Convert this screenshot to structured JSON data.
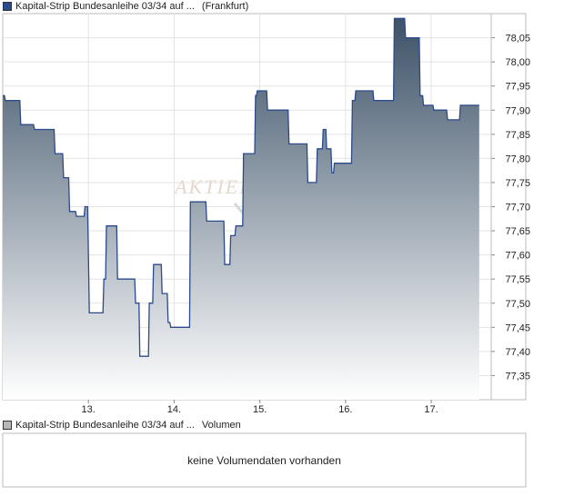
{
  "price_chart": {
    "legend_name": "Kapital-Strip Bundesanleihe 03/34 auf ...",
    "legend_exchange": "(Frankfurt)",
    "legend_color": "#2b4a8b",
    "watermark": "AKTIEN"
  },
  "volume_chart": {
    "legend_name": "Kapital-Strip Bundesanleihe 03/34 auf ...",
    "legend_label": "Volumen",
    "legend_color": "#b8b8b8",
    "no_data_text": "keine Volumendaten vorhanden"
  },
  "chart_data": [
    {
      "type": "area",
      "title": "",
      "xlabel": "",
      "ylabel": "",
      "ylim": [
        77.3,
        78.1
      ],
      "xlim": [
        12.0,
        17.7
      ],
      "y_ticks": [
        "77,35",
        "77,40",
        "77,45",
        "77,50",
        "77,55",
        "77,60",
        "77,65",
        "77,70",
        "77,75",
        "77,80",
        "77,85",
        "77,90",
        "77,95",
        "78,00",
        "78,05"
      ],
      "y_tick_values": [
        77.35,
        77.4,
        77.45,
        77.5,
        77.55,
        77.6,
        77.65,
        77.7,
        77.75,
        77.8,
        77.85,
        77.9,
        77.95,
        78.0,
        78.05
      ],
      "x_ticks": [
        "13.",
        "14.",
        "15.",
        "16.",
        "17."
      ],
      "x_tick_values": [
        13,
        14,
        15,
        16,
        17
      ],
      "y_axis_position": "right",
      "grid": true,
      "line_color": "#2b4a8b",
      "fill_top_color": "#3d5268",
      "fill_bottom_color": "#ffffff",
      "series": [
        {
          "x": [
            12.0,
            12.02,
            12.03,
            12.2,
            12.21,
            12.36,
            12.37,
            12.6,
            12.61,
            12.7,
            12.71,
            12.77,
            12.78,
            12.85,
            12.86,
            12.95,
            12.96,
            12.99,
            13.0,
            13.01,
            13.02,
            13.05,
            13.06,
            13.17,
            13.18,
            13.2,
            13.21,
            13.33,
            13.34,
            13.54,
            13.55,
            13.59,
            13.6,
            13.7,
            13.71,
            13.75,
            13.76,
            13.85,
            13.86,
            13.92,
            13.93,
            13.95,
            13.96,
            13.97,
            13.98,
            14.03,
            14.04,
            14.18,
            14.19,
            14.21,
            14.22,
            14.37,
            14.38,
            14.58,
            14.59,
            14.65,
            14.66,
            14.71,
            14.72,
            14.8,
            14.81,
            14.94,
            14.95,
            14.96,
            14.97,
            15.08,
            15.09,
            15.21,
            15.22,
            15.33,
            15.34,
            15.55,
            15.56,
            15.66,
            15.67,
            15.73,
            15.74,
            15.77,
            15.78,
            15.83,
            15.84,
            15.86,
            15.87,
            15.92,
            15.93,
            16.07,
            16.08,
            16.11,
            16.12,
            16.32,
            16.33,
            16.56,
            16.57,
            16.69,
            16.7,
            16.86,
            16.87,
            16.9,
            16.91,
            16.96,
            16.97,
            17.02,
            17.03,
            17.18,
            17.19,
            17.33,
            17.34,
            17.56
          ],
          "y": [
            77.93,
            77.93,
            77.92,
            77.92,
            77.87,
            77.87,
            77.86,
            77.86,
            77.81,
            77.81,
            77.76,
            77.76,
            77.69,
            77.69,
            77.68,
            77.68,
            77.7,
            77.7,
            77.6,
            77.48,
            77.48,
            77.48,
            77.48,
            77.48,
            77.55,
            77.55,
            77.66,
            77.66,
            77.55,
            77.55,
            77.5,
            77.5,
            77.39,
            77.39,
            77.5,
            77.5,
            77.58,
            77.58,
            77.52,
            77.52,
            77.46,
            77.46,
            77.45,
            77.45,
            77.45,
            77.45,
            77.45,
            77.45,
            77.71,
            77.71,
            77.71,
            77.71,
            77.67,
            77.67,
            77.58,
            77.58,
            77.64,
            77.64,
            77.66,
            77.66,
            77.81,
            77.81,
            77.93,
            77.93,
            77.94,
            77.94,
            77.9,
            77.9,
            77.9,
            77.9,
            77.83,
            77.83,
            77.75,
            77.75,
            77.82,
            77.82,
            77.86,
            77.86,
            77.82,
            77.82,
            77.77,
            77.77,
            77.79,
            77.79,
            77.79,
            77.79,
            77.92,
            77.92,
            77.94,
            77.94,
            77.92,
            77.92,
            78.09,
            78.09,
            78.05,
            78.05,
            77.93,
            77.93,
            77.91,
            77.91,
            77.91,
            77.91,
            77.9,
            77.9,
            77.88,
            77.88,
            77.91,
            77.91
          ]
        }
      ]
    },
    {
      "type": "bar",
      "title": "",
      "values": [],
      "no_data": true
    }
  ]
}
